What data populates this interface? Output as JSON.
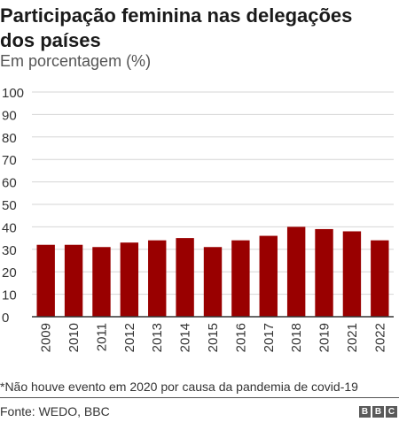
{
  "chart_data": {
    "type": "bar",
    "title": "Participação feminina nas delegações dos países",
    "subtitle": "Em porcentagem (%)",
    "categories": [
      "2009",
      "2010",
      "2011",
      "2012",
      "2013",
      "2014",
      "2015",
      "2016",
      "2017",
      "2018",
      "2019",
      "2021",
      "2022"
    ],
    "values": [
      32,
      32,
      31,
      33,
      34,
      35,
      31,
      34,
      36,
      40,
      39,
      38,
      34
    ],
    "ylim": [
      0,
      100
    ],
    "yticks": [
      0,
      10,
      20,
      30,
      40,
      50,
      60,
      70,
      80,
      90,
      100
    ],
    "grid": true,
    "bar_color": "#990000",
    "note": "*Não houve evento em 2020 por causa da pandemia de covid-19",
    "source": "Fonte: WEDO, BBC"
  },
  "logo_letters": [
    "B",
    "B",
    "C"
  ]
}
